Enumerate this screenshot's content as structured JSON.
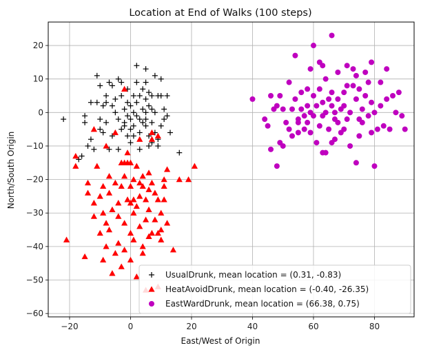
{
  "chart_data": {
    "type": "scatter",
    "title": "Location at End of Walks (100 steps)",
    "xlabel": "East/West of Origin",
    "ylabel": "North/South Origin",
    "xlim": [
      -27,
      93
    ],
    "ylim": [
      -61,
      27
    ],
    "xticks": [
      -20,
      0,
      20,
      40,
      60,
      80
    ],
    "yticks": [
      -60,
      -50,
      -40,
      -30,
      -20,
      -10,
      0,
      10,
      20
    ],
    "grid": true,
    "legend_position": "lower right",
    "series": [
      {
        "name": "UsualDrunk, mean location = (0.31, -0.83)",
        "marker": "plus",
        "color": "#000000",
        "points": [
          [
            -22,
            -2
          ],
          [
            -17,
            -14
          ],
          [
            -16,
            -13
          ],
          [
            -15,
            -1
          ],
          [
            -15,
            -3
          ],
          [
            -14,
            -10
          ],
          [
            -13,
            -8
          ],
          [
            -13,
            3
          ],
          [
            -12,
            -11
          ],
          [
            -11,
            11
          ],
          [
            -11,
            3
          ],
          [
            -10,
            8
          ],
          [
            -10,
            -5
          ],
          [
            -9,
            -6
          ],
          [
            -9,
            2
          ],
          [
            -8,
            3
          ],
          [
            -8,
            -3
          ],
          [
            -8,
            5
          ],
          [
            -7,
            9
          ],
          [
            -7,
            -11
          ],
          [
            -6,
            8
          ],
          [
            -6,
            2
          ],
          [
            -6,
            -7
          ],
          [
            -5,
            4
          ],
          [
            -5,
            0
          ],
          [
            -4,
            10
          ],
          [
            -4,
            -2
          ],
          [
            -3,
            9
          ],
          [
            -3,
            5
          ],
          [
            -3,
            -5
          ],
          [
            -2,
            1
          ],
          [
            -2,
            -3
          ],
          [
            -2,
            -4
          ],
          [
            -1,
            3
          ],
          [
            -1,
            -1
          ],
          [
            -1,
            -7
          ],
          [
            0,
            2
          ],
          [
            0,
            -2
          ],
          [
            0,
            -5
          ],
          [
            1,
            5
          ],
          [
            1,
            0
          ],
          [
            1,
            -4
          ],
          [
            2,
            14
          ],
          [
            2,
            9
          ],
          [
            2,
            3
          ],
          [
            2,
            -1
          ],
          [
            3,
            5
          ],
          [
            3,
            -2
          ],
          [
            3,
            -6
          ],
          [
            4,
            1
          ],
          [
            4,
            -3
          ],
          [
            5,
            13
          ],
          [
            5,
            9
          ],
          [
            5,
            4
          ],
          [
            5,
            0
          ],
          [
            5,
            -2
          ],
          [
            5,
            -4
          ],
          [
            6,
            6
          ],
          [
            6,
            2
          ],
          [
            6,
            -7
          ],
          [
            7,
            5
          ],
          [
            7,
            1
          ],
          [
            7,
            -3
          ],
          [
            8,
            11
          ],
          [
            8,
            0
          ],
          [
            8,
            -6
          ],
          [
            9,
            5
          ],
          [
            9,
            -10
          ],
          [
            10,
            10
          ],
          [
            10,
            5
          ],
          [
            10,
            -4
          ],
          [
            11,
            1
          ],
          [
            11,
            -2
          ],
          [
            12,
            5
          ],
          [
            12,
            -1
          ],
          [
            13,
            -6
          ],
          [
            16,
            -12
          ],
          [
            -4,
            -11
          ],
          [
            0,
            -9
          ],
          [
            3,
            -11
          ],
          [
            6,
            -10
          ],
          [
            9,
            -8
          ],
          [
            -1,
            7
          ],
          [
            4,
            7
          ],
          [
            7,
            -9
          ],
          [
            -10,
            -2
          ],
          [
            1,
            -7
          ]
        ]
      },
      {
        "name": "HeatAvoidDrunk, mean location = (-0.40, -26.35)",
        "marker": "triangle",
        "color": "#ff0000",
        "points": [
          [
            -21,
            -38
          ],
          [
            -18,
            -13
          ],
          [
            -18,
            -16
          ],
          [
            -15,
            -43
          ],
          [
            -14,
            -21
          ],
          [
            -14,
            -24
          ],
          [
            -12,
            -5
          ],
          [
            -12,
            -31
          ],
          [
            -12,
            -27
          ],
          [
            -11,
            -16
          ],
          [
            -10,
            -25
          ],
          [
            -10,
            -36
          ],
          [
            -9,
            -22
          ],
          [
            -9,
            -30
          ],
          [
            -9,
            -44
          ],
          [
            -8,
            -10
          ],
          [
            -8,
            -40
          ],
          [
            -8,
            -33
          ],
          [
            -7,
            -19
          ],
          [
            -7,
            -24
          ],
          [
            -7,
            -35
          ],
          [
            -6,
            -48
          ],
          [
            -6,
            -29
          ],
          [
            -5,
            -6
          ],
          [
            -5,
            -21
          ],
          [
            -5,
            -42
          ],
          [
            -4,
            -27
          ],
          [
            -4,
            -31
          ],
          [
            -4,
            -39
          ],
          [
            -3,
            -15
          ],
          [
            -3,
            -22
          ],
          [
            -3,
            -46
          ],
          [
            -2,
            7
          ],
          [
            -2,
            -15
          ],
          [
            -2,
            -19
          ],
          [
            -2,
            -33
          ],
          [
            -2,
            -41
          ],
          [
            -1,
            -15
          ],
          [
            -1,
            -26
          ],
          [
            0,
            -22
          ],
          [
            0,
            -27
          ],
          [
            0,
            -36
          ],
          [
            0,
            -44
          ],
          [
            0,
            -15
          ],
          [
            1,
            -20
          ],
          [
            1,
            -26
          ],
          [
            1,
            -30
          ],
          [
            1,
            -38
          ],
          [
            2,
            -16
          ],
          [
            2,
            -28
          ],
          [
            2,
            -49
          ],
          [
            3,
            -21
          ],
          [
            3,
            -25
          ],
          [
            3,
            -34
          ],
          [
            4,
            -19
          ],
          [
            4,
            -22
          ],
          [
            4,
            -42
          ],
          [
            4,
            -40
          ],
          [
            5,
            -32
          ],
          [
            5,
            -26
          ],
          [
            5,
            -53
          ],
          [
            6,
            -18
          ],
          [
            6,
            -23
          ],
          [
            6,
            -29
          ],
          [
            6,
            -37
          ],
          [
            7,
            -8
          ],
          [
            7,
            -6
          ],
          [
            7,
            -21
          ],
          [
            7,
            -36
          ],
          [
            8,
            -24
          ],
          [
            8,
            -32
          ],
          [
            9,
            -7
          ],
          [
            9,
            -26
          ],
          [
            9,
            -36
          ],
          [
            9,
            -52
          ],
          [
            10,
            -30
          ],
          [
            10,
            -35
          ],
          [
            10,
            -38
          ],
          [
            11,
            -20
          ],
          [
            11,
            -22
          ],
          [
            11,
            -26
          ],
          [
            12,
            -17
          ],
          [
            12,
            -33
          ],
          [
            14,
            -41
          ],
          [
            16,
            -20
          ],
          [
            19,
            -20
          ],
          [
            21,
            -16
          ],
          [
            -1,
            -12
          ],
          [
            3,
            -8
          ]
        ]
      },
      {
        "name": "EastWardDrunk, mean location = (66.38, 0.75)",
        "marker": "circle",
        "color": "#bf00bf",
        "points": [
          [
            40,
            4
          ],
          [
            44,
            -2
          ],
          [
            45,
            -4
          ],
          [
            46,
            -11
          ],
          [
            46,
            5
          ],
          [
            47,
            1
          ],
          [
            48,
            -16
          ],
          [
            48,
            2
          ],
          [
            49,
            -9
          ],
          [
            49,
            5
          ],
          [
            50,
            -10
          ],
          [
            50,
            1
          ],
          [
            51,
            -3
          ],
          [
            52,
            9
          ],
          [
            52,
            -5
          ],
          [
            53,
            -7
          ],
          [
            53,
            1
          ],
          [
            54,
            17
          ],
          [
            54,
            4
          ],
          [
            55,
            -3
          ],
          [
            55,
            -6
          ],
          [
            56,
            6
          ],
          [
            56,
            1
          ],
          [
            57,
            -1
          ],
          [
            57,
            -5
          ],
          [
            58,
            7
          ],
          [
            58,
            2
          ],
          [
            58,
            -3
          ],
          [
            59,
            0
          ],
          [
            59,
            -6
          ],
          [
            60,
            20
          ],
          [
            60,
            -1
          ],
          [
            60,
            5
          ],
          [
            61,
            -9
          ],
          [
            61,
            2
          ],
          [
            62,
            15
          ],
          [
            62,
            -4
          ],
          [
            62,
            7
          ],
          [
            63,
            14
          ],
          [
            63,
            3
          ],
          [
            63,
            -1
          ],
          [
            64,
            -12
          ],
          [
            64,
            10
          ],
          [
            64,
            0
          ],
          [
            65,
            4
          ],
          [
            65,
            -5
          ],
          [
            66,
            23
          ],
          [
            66,
            6
          ],
          [
            66,
            -9
          ],
          [
            66,
            2
          ],
          [
            67,
            0
          ],
          [
            67,
            -8
          ],
          [
            68,
            12
          ],
          [
            68,
            -3
          ],
          [
            68,
            4
          ],
          [
            69,
            1
          ],
          [
            70,
            -5
          ],
          [
            70,
            2
          ],
          [
            70,
            6
          ],
          [
            71,
            14
          ],
          [
            71,
            -2
          ],
          [
            72,
            -10
          ],
          [
            72,
            0
          ],
          [
            73,
            8
          ],
          [
            73,
            13
          ],
          [
            74,
            -15
          ],
          [
            74,
            4
          ],
          [
            74,
            11
          ],
          [
            75,
            -7
          ],
          [
            75,
            7
          ],
          [
            76,
            1
          ],
          [
            76,
            -3
          ],
          [
            77,
            12
          ],
          [
            77,
            5
          ],
          [
            78,
            -1
          ],
          [
            78,
            9
          ],
          [
            79,
            15
          ],
          [
            79,
            3
          ],
          [
            80,
            -16
          ],
          [
            80,
            0
          ],
          [
            81,
            -5
          ],
          [
            82,
            9
          ],
          [
            82,
            2
          ],
          [
            83,
            -4
          ],
          [
            84,
            13
          ],
          [
            84,
            4
          ],
          [
            85,
            -5
          ],
          [
            86,
            5
          ],
          [
            87,
            0
          ],
          [
            88,
            6
          ],
          [
            89,
            -1
          ],
          [
            90,
            -5
          ],
          [
            59,
            13
          ],
          [
            63,
            -12
          ],
          [
            67,
            -2
          ],
          [
            71,
            8
          ],
          [
            75,
            -2
          ],
          [
            79,
            -6
          ],
          [
            55,
            -2
          ],
          [
            69,
            -6
          ]
        ]
      }
    ]
  }
}
